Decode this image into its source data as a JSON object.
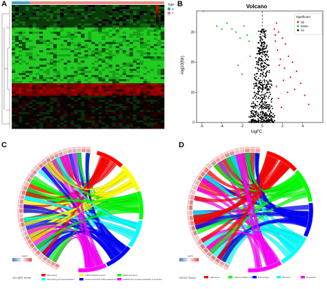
{
  "panels": {
    "a": {
      "label": "A"
    },
    "b": {
      "label": "B"
    },
    "c": {
      "label": "C"
    },
    "d": {
      "label": "D"
    }
  },
  "heatmap": {
    "legend_title": "Type",
    "legend_scale": [
      "12",
      "10",
      "8",
      "6",
      "4",
      "2",
      "0",
      "-2"
    ],
    "type_legend_title": "Type",
    "type_legend_items": [
      {
        "label": "N",
        "color": "#3fa0c8"
      },
      {
        "label": "T",
        "color": "#e8897f"
      }
    ],
    "colors": {
      "low": "#00ff00",
      "mid": "#000000",
      "high": "#ff0000"
    }
  },
  "chart_data": [
    {
      "type": "scatter",
      "title": "Volcano",
      "xlabel": "logFC",
      "ylabel": "-log10(fdr)",
      "xlim": [
        -6.5,
        6
      ],
      "ylim": [
        0,
        37
      ],
      "xticks": [
        "-6",
        "-4",
        "-2",
        "0",
        "2",
        "4"
      ],
      "yticks": [
        "0",
        "10",
        "20",
        "30"
      ],
      "legend_title": "Significant",
      "legend_position": "top-right",
      "series": [
        {
          "name": "up",
          "color": "#ff0000",
          "x": [
            1.4,
            1.6,
            2.0,
            2.3,
            2.6,
            3.0,
            3.4,
            3.8,
            4.2,
            4.6,
            1.2,
            1.5,
            1.8,
            2.2,
            2.8,
            3.2,
            1.3,
            1.7,
            2.1,
            2.5,
            1.6,
            1.9,
            1.3,
            1.4
          ],
          "y": [
            33,
            30,
            28,
            26,
            22,
            20,
            17,
            13,
            9,
            6,
            31,
            24,
            21,
            18,
            15,
            11,
            27,
            19,
            14,
            10,
            8,
            5,
            29,
            12
          ]
        },
        {
          "name": "down",
          "color": "#00cc00",
          "x": [
            -5.8,
            -4.5,
            -4.0,
            -3.5,
            -3.0,
            -2.6,
            -2.2,
            -1.8,
            -1.5,
            -1.3,
            -1.2,
            -2.0,
            -2.4
          ],
          "y": [
            37,
            32,
            31,
            33,
            31,
            30,
            28,
            32,
            29,
            27,
            22,
            16,
            19
          ]
        },
        {
          "name": "no",
          "color": "#000000",
          "x": [],
          "y": []
        }
      ]
    }
  ],
  "chord_c": {
    "legend_title": "logFC",
    "terms_title": "GO (BP) Terms",
    "terms": [
      {
        "label": "RNA splicing",
        "color": "#ff0000"
      },
      {
        "label": "ncRNA metabolic process",
        "color": "#ffff00"
      },
      {
        "label": "mRNA processing",
        "color": "#00ff00"
      },
      {
        "label": "RNA splicing via transesterification",
        "color": "#00ffff"
      },
      {
        "label": "nuclear-transcribed mRNA catabolic process",
        "color": "#0000ff"
      },
      {
        "label": "establishment of protein localization to membrane",
        "color": "#ff00ff"
      }
    ]
  },
  "chord_d": {
    "legend_title": "logFC",
    "terms_title": "KEGG Terms",
    "terms": [
      {
        "label": "Spliceosome",
        "color": "#ff0000"
      },
      {
        "label": "mRNA surveillance pathway",
        "color": "#00ff00"
      },
      {
        "label": "RNA transport",
        "color": "#0000ff"
      },
      {
        "label": "Ribosome",
        "color": "#00ffff"
      },
      {
        "label": "Proteasome",
        "color": "#ff00ff"
      }
    ]
  },
  "style": {
    "up_color": "#ff0000",
    "down_color": "#00cc00",
    "no_color": "#000000"
  }
}
